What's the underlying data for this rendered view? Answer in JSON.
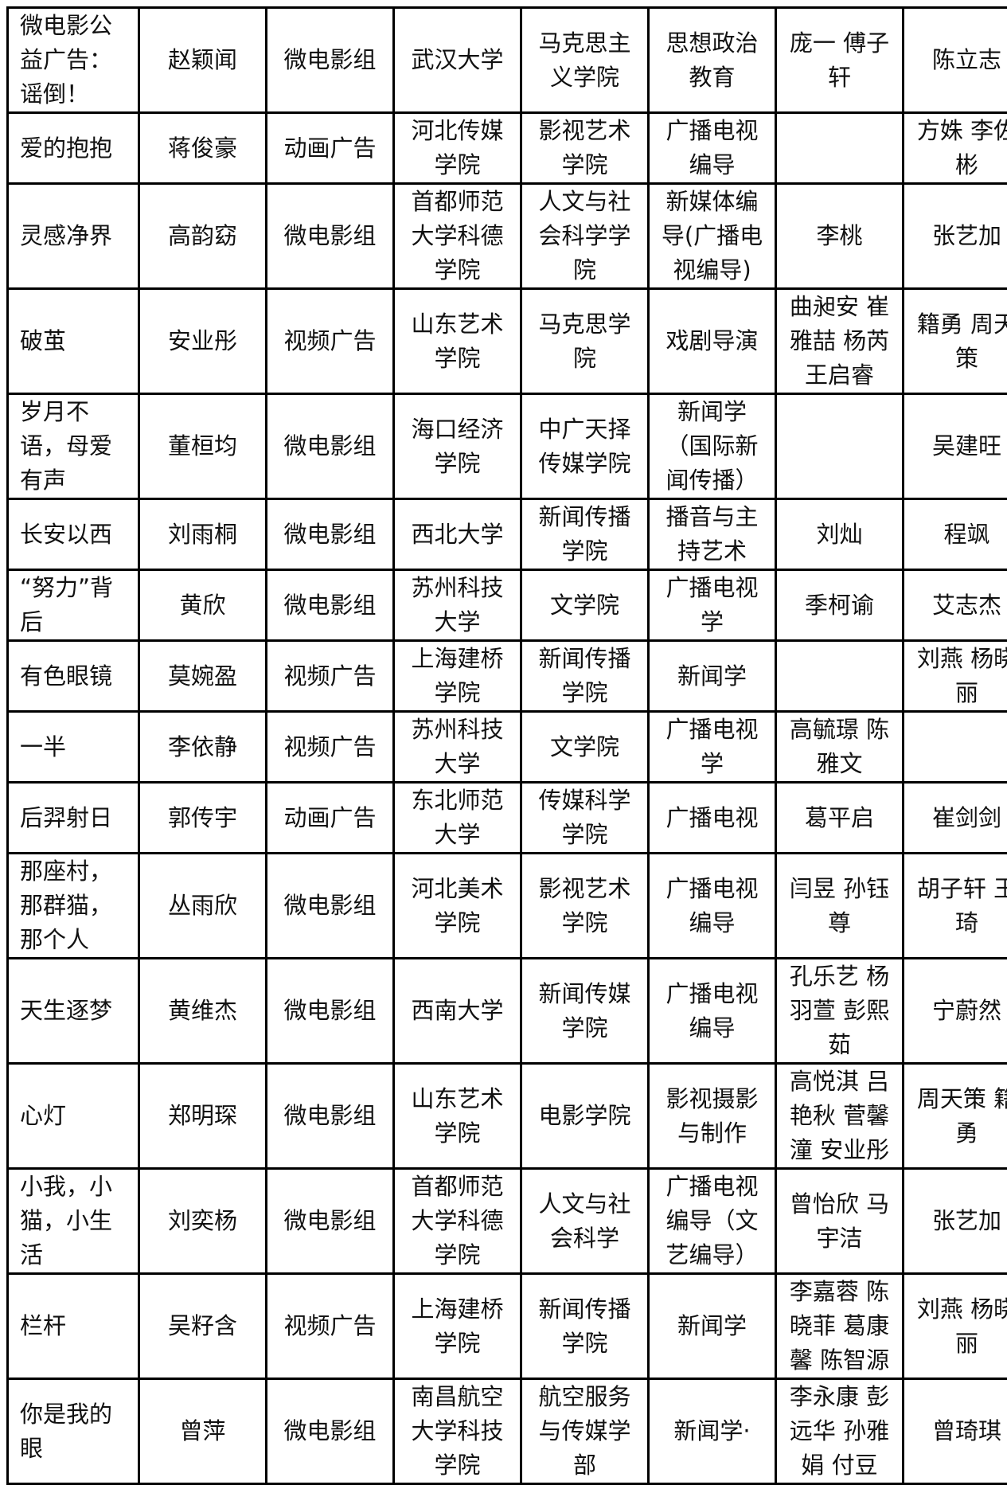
{
  "table": {
    "rows": [
      [
        "微电影公益广告：谣倒！",
        "赵颖闻",
        "微电影组",
        "武汉大学",
        "马克思主义学院",
        "思想政治教育",
        "庞一 傅子轩",
        "陈立志"
      ],
      [
        "爱的抱抱",
        "蒋俊豪",
        "动画广告",
        "河北传媒学院",
        "影视艺术学院",
        "广播电视编导",
        "",
        "方姝 李佐彬"
      ],
      [
        "灵感净界",
        "高韵窈",
        "微电影组",
        "首都师范大学科德学院",
        "人文与社会科学学院",
        "新媒体编导(广播电视编导)",
        "李桃",
        "张艺加"
      ],
      [
        "破茧",
        "安业彤",
        "视频广告",
        "山东艺术学院",
        "马克思学院",
        "戏剧导演",
        "曲昶安 崔雅喆 杨芮王启睿",
        "籍勇 周天策"
      ],
      [
        "岁月不语，母爱有声",
        "董桓均",
        "微电影组",
        "海口经济学院",
        "中广天择传媒学院",
        "新闻学（国际新闻传播）",
        "",
        "吴建旺"
      ],
      [
        "长安以西",
        "刘雨桐",
        "微电影组",
        "西北大学",
        "新闻传播学院",
        "播音与主持艺术",
        "刘灿",
        "程飒"
      ],
      [
        "“努力”背后",
        "黄欣",
        "微电影组",
        "苏州科技大学",
        "文学院",
        "广播电视学",
        "季柯谕",
        "艾志杰"
      ],
      [
        "有色眼镜",
        "莫婉盈",
        "视频广告",
        "上海建桥学院",
        "新闻传播学院",
        "新闻学",
        "",
        "刘燕 杨晓丽"
      ],
      [
        "一半",
        "李依静",
        "视频广告",
        "苏州科技大学",
        "文学院",
        "广播电视学",
        "高毓璟 陈雅文",
        ""
      ],
      [
        "后羿射日",
        "郭传宇",
        "动画广告",
        "东北师范大学",
        "传媒科学学院",
        "广播电视",
        "葛平启",
        "崔剑剑"
      ],
      [
        "那座村，那群猫，那个人",
        "丛雨欣",
        "微电影组",
        "河北美术学院",
        "影视艺术学院",
        "广播电视编导",
        "闫昱 孙钰尊",
        "胡子轩 王琦"
      ],
      [
        "天生逐梦",
        "黄维杰",
        "微电影组",
        "西南大学",
        "新闻传媒学院",
        "广播电视编导",
        "孔乐艺 杨羽萱 彭熙茹",
        "宁蔚然"
      ],
      [
        "心灯",
        "郑明琛",
        "微电影组",
        "山东艺术学院",
        "电影学院",
        "影视摄影与制作",
        "高悦淇 吕艳秋 菅馨潼 安业彤",
        "周天策 籍勇"
      ],
      [
        "小我，小猫，小生活",
        "刘奕杨",
        "微电影组",
        "首都师范大学科德学院",
        "人文与社会科学",
        "广播电视编导（文艺编导）",
        "曾怡欣 马宇洁",
        "张艺加"
      ],
      [
        "栏杆",
        "吴籽含",
        "视频广告",
        "上海建桥学院",
        "新闻传播学院",
        "新闻学",
        "李嘉蓉 陈晓菲 葛康馨 陈智源",
        "刘燕 杨晓丽"
      ],
      [
        "你是我的眼",
        "曾萍",
        "微电影组",
        "南昌航空大学科技学院",
        "航空服务与传媒学部",
        "新闻学·",
        "李永康 彭远华 孙雅娟 付豆",
        "曾琦琪"
      ]
    ]
  }
}
